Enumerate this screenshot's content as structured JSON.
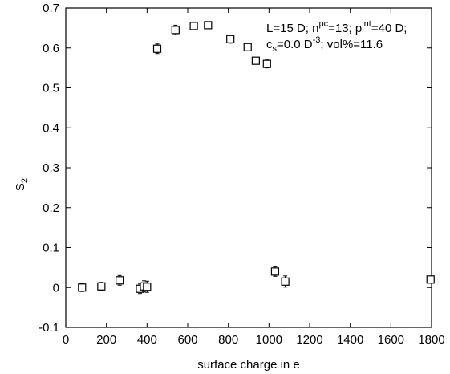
{
  "chart_data": {
    "type": "scatter",
    "xlabel": "surface charge in e",
    "ylabel_main": "S",
    "ylabel_sub": "2",
    "xlim": [
      0,
      1800
    ],
    "ylim": [
      -0.1,
      0.7
    ],
    "xticks": [
      "0",
      "200",
      "400",
      "600",
      "800",
      "1000",
      "1200",
      "1400",
      "1600",
      "1800"
    ],
    "yticks": [
      "-0.1",
      "0",
      "0.1",
      "0.2",
      "0.3",
      "0.4",
      "0.5",
      "0.6",
      "0.7"
    ],
    "grid": false,
    "legend": "none",
    "marker": "open-square",
    "annotation": {
      "line1_a": "L=15 D; n",
      "line1_a_sup": "pc",
      "line1_b": "=13; p",
      "line1_b_sup": "int",
      "line1_c": "=40 D;",
      "line2_a": "c",
      "line2_a_sub": "s",
      "line2_b": "=0.0 D",
      "line2_b_sup": "-3",
      "line2_c": "; vol%=11.6"
    },
    "points": [
      {
        "x": 80,
        "y": 0.0,
        "err": 0.01
      },
      {
        "x": 175,
        "y": 0.003,
        "err": 0.01
      },
      {
        "x": 265,
        "y": 0.018,
        "err": 0.012
      },
      {
        "x": 365,
        "y": -0.003,
        "err": 0.012
      },
      {
        "x": 385,
        "y": 0.003,
        "err": 0.014
      },
      {
        "x": 400,
        "y": 0.002,
        "err": 0.014
      },
      {
        "x": 450,
        "y": 0.598,
        "err": 0.012
      },
      {
        "x": 540,
        "y": 0.645,
        "err": 0.012
      },
      {
        "x": 630,
        "y": 0.655,
        "err": 0.01
      },
      {
        "x": 700,
        "y": 0.657,
        "err": 0.008
      },
      {
        "x": 810,
        "y": 0.622,
        "err": 0.01
      },
      {
        "x": 895,
        "y": 0.602,
        "err": 0.008
      },
      {
        "x": 935,
        "y": 0.568,
        "err": 0.008
      },
      {
        "x": 990,
        "y": 0.56,
        "err": 0.01
      },
      {
        "x": 1030,
        "y": 0.04,
        "err": 0.012
      },
      {
        "x": 1080,
        "y": 0.015,
        "err": 0.014
      },
      {
        "x": 1795,
        "y": 0.02,
        "err": 0.006
      }
    ]
  }
}
